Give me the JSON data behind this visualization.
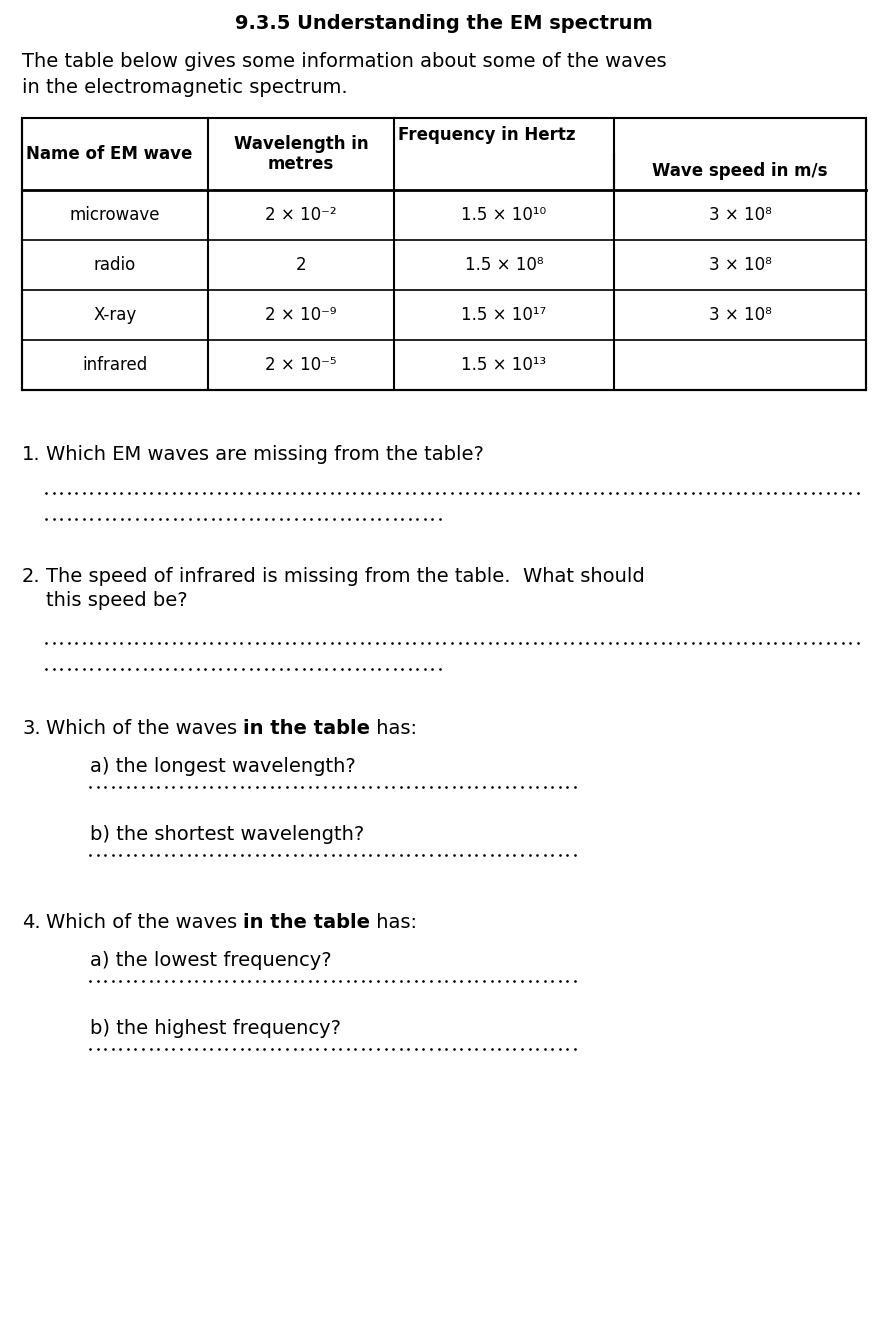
{
  "title": "9.3.5 Understanding the EM spectrum",
  "intro_line1": "The table below gives some information about some of the waves",
  "intro_line2": "in the electromagnetic spectrum.",
  "table_col_headers": [
    "Name of EM wave",
    "Wavelength in\nmetres",
    "Frequency in Hertz",
    "Wave speed in m/s"
  ],
  "table_data": [
    [
      "microwave",
      "2 × 10⁻²",
      "1.5 × 10¹⁰",
      "3 × 10⁸"
    ],
    [
      "radio",
      "2",
      "1.5 × 10⁸",
      "3 × 10⁸"
    ],
    [
      "X-ray",
      "2 × 10⁻⁹",
      "1.5 × 10¹⁷",
      "3 × 10⁸"
    ],
    [
      "infrared",
      "2 × 10⁻⁵",
      "1.5 × 10¹³",
      ""
    ]
  ],
  "bg_color": "#ffffff",
  "text_color": "#000000",
  "title_fontsize": 14,
  "body_fontsize": 14,
  "table_fontsize": 12
}
